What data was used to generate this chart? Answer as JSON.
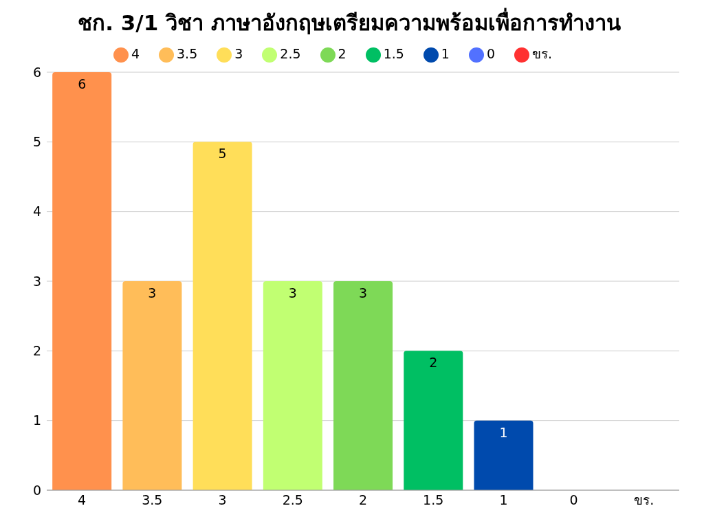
{
  "chart_data": {
    "type": "bar",
    "title": "ชก. 3/1 วิชา ภาษาอังกฤษเตรียมความพร้อมเพื่อการทำงาน",
    "categories": [
      "4",
      "3.5",
      "3",
      "2.5",
      "2",
      "1.5",
      "1",
      "0",
      "ขร."
    ],
    "stacked": true,
    "series": [
      {
        "name": "4",
        "color": "#ff914d",
        "values": [
          6,
          null,
          null,
          null,
          null,
          null,
          null,
          null,
          null
        ],
        "value_labels": [
          "6",
          null,
          null,
          null,
          null,
          null,
          null,
          null,
          null
        ]
      },
      {
        "name": "3.5",
        "color": "#ffbd59",
        "values": [
          null,
          3,
          null,
          null,
          null,
          null,
          null,
          null,
          null
        ],
        "value_labels": [
          null,
          "3",
          null,
          null,
          null,
          null,
          null,
          null,
          null
        ]
      },
      {
        "name": "3",
        "color": "#ffde59",
        "values": [
          null,
          null,
          5,
          null,
          null,
          null,
          null,
          null,
          null
        ],
        "value_labels": [
          null,
          null,
          "5",
          null,
          null,
          null,
          null,
          null,
          null
        ]
      },
      {
        "name": "2.5",
        "color": "#c1ff72",
        "values": [
          null,
          null,
          null,
          3,
          null,
          null,
          null,
          null,
          null
        ],
        "value_labels": [
          null,
          null,
          null,
          "3",
          null,
          null,
          null,
          null,
          null
        ]
      },
      {
        "name": "2",
        "color": "#7ed957",
        "values": [
          null,
          null,
          null,
          null,
          3,
          null,
          null,
          null,
          null
        ],
        "value_labels": [
          null,
          null,
          null,
          null,
          "3",
          null,
          null,
          null,
          null
        ]
      },
      {
        "name": "1.5",
        "color": "#00bf63",
        "values": [
          null,
          null,
          null,
          null,
          null,
          2,
          null,
          null,
          null
        ],
        "value_labels": [
          null,
          null,
          null,
          null,
          null,
          "2",
          null,
          null,
          null
        ]
      },
      {
        "name": "1",
        "color": "#004aad",
        "values": [
          null,
          null,
          null,
          null,
          null,
          null,
          1,
          null,
          null
        ],
        "value_labels": [
          null,
          null,
          null,
          null,
          null,
          null,
          "1",
          null,
          null
        ]
      },
      {
        "name": "0",
        "color": "#5271ff",
        "values": [
          null,
          null,
          null,
          null,
          null,
          null,
          null,
          0,
          null
        ],
        "value_labels": [
          null,
          null,
          null,
          null,
          null,
          null,
          null,
          null,
          null
        ]
      },
      {
        "name": "ขร.",
        "color": "#ff3131",
        "values": [
          null,
          null,
          null,
          null,
          null,
          null,
          null,
          null,
          0
        ],
        "value_labels": [
          null,
          null,
          null,
          null,
          null,
          null,
          null,
          null,
          null
        ]
      }
    ],
    "ylim": [
      0,
      6
    ],
    "yticks": [
      0,
      1,
      2,
      3,
      4,
      5,
      6
    ],
    "grid": "y",
    "legend": "top"
  }
}
